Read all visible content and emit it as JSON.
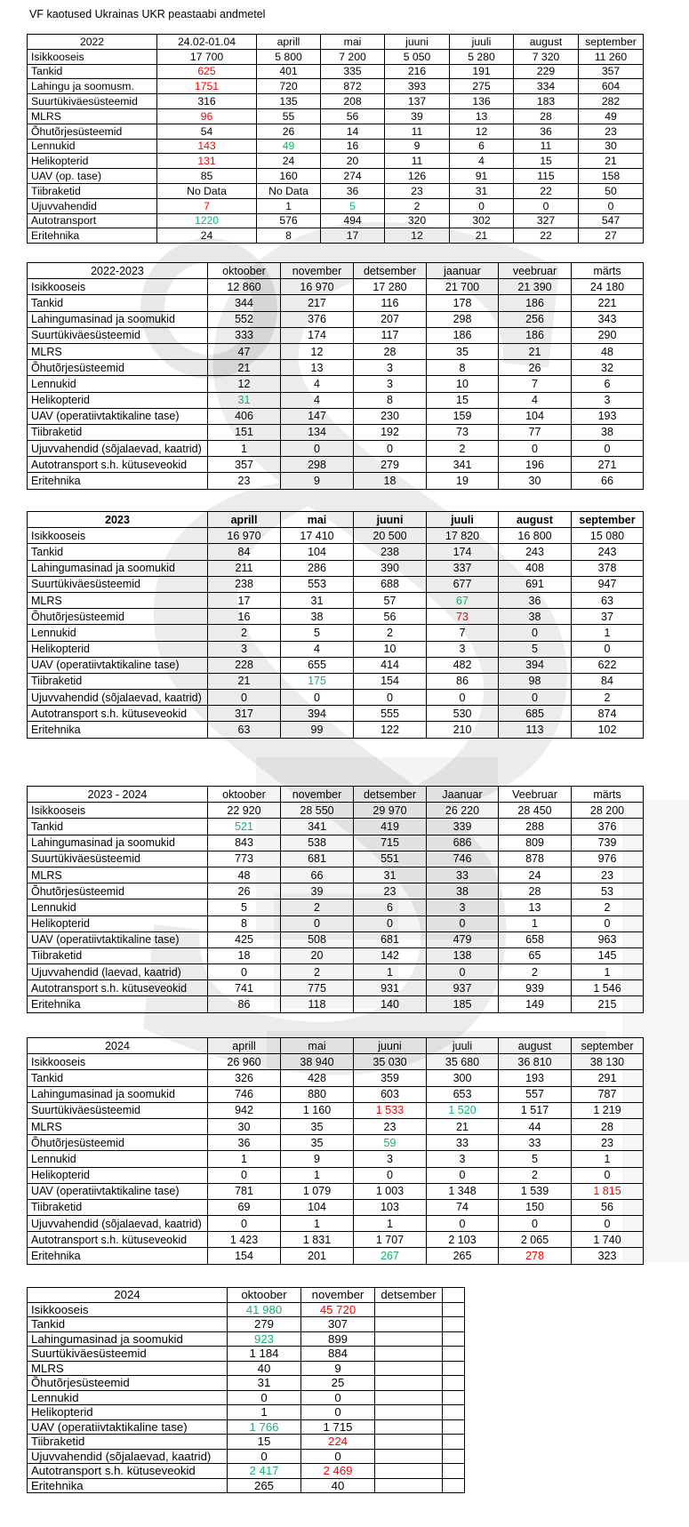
{
  "title": "VF kaotused Ukrainas UKR peastaabi andmetel",
  "colors": {
    "red": "#fe0000",
    "green": "#17b169",
    "text": "#000000",
    "border": "#000000"
  },
  "watermark": "faded-gray-emblem",
  "tables": [
    {
      "period": "2022",
      "columns": [
        "24.02-01.04",
        "aprill",
        "mai",
        "juuni",
        "juuli",
        "august",
        "september"
      ],
      "rows": [
        {
          "label": "Isikkooseis",
          "values": [
            "17 700",
            "5 800",
            "7 200",
            "5 050",
            "5 280",
            "7 320",
            "11 260"
          ]
        },
        {
          "label": "Tankid",
          "values": [
            "625",
            "401",
            "335",
            "216",
            "191",
            "229",
            "357"
          ],
          "marks": [
            "r",
            "",
            "",
            "",
            "",
            "",
            ""
          ]
        },
        {
          "label": "Lahingu ja soomusm.",
          "values": [
            "1751",
            "720",
            "872",
            "393",
            "275",
            "334",
            "604"
          ],
          "marks": [
            "r",
            "",
            "",
            "",
            "",
            "",
            ""
          ]
        },
        {
          "label": "Suurtükiväesüsteemid",
          "values": [
            "316",
            "135",
            "208",
            "137",
            "136",
            "183",
            "282"
          ]
        },
        {
          "label": "MLRS",
          "values": [
            "96",
            "55",
            "56",
            "39",
            "13",
            "28",
            "49"
          ],
          "marks": [
            "r",
            "",
            "",
            "",
            "",
            "",
            ""
          ]
        },
        {
          "label": "Õhutõrjesüsteemid",
          "values": [
            "54",
            "26",
            "14",
            "11",
            "12",
            "36",
            "23"
          ]
        },
        {
          "label": "Lennukid",
          "values": [
            "143",
            "49",
            "16",
            "9",
            "6",
            "11",
            "30"
          ],
          "marks": [
            "r",
            "g",
            "",
            "",
            "",
            "",
            ""
          ]
        },
        {
          "label": "Helikopterid",
          "values": [
            "131",
            "24",
            "20",
            "11",
            "4",
            "15",
            "21"
          ],
          "marks": [
            "r",
            "",
            "",
            "",
            "",
            "",
            ""
          ]
        },
        {
          "label": "UAV (op. tase)",
          "values": [
            "85",
            "160",
            "274",
            "126",
            "91",
            "115",
            "158"
          ]
        },
        {
          "label": "Tiibraketid",
          "values": [
            "No Data",
            "No Data",
            "36",
            "23",
            "31",
            "22",
            "50"
          ]
        },
        {
          "label": "Ujuvvahendid",
          "values": [
            "7",
            "1",
            "5",
            "2",
            "0",
            "0",
            "0"
          ],
          "marks": [
            "r",
            "",
            "g",
            "",
            "",
            "",
            ""
          ]
        },
        {
          "label": "Autotransport",
          "values": [
            "1220",
            "576",
            "494",
            "320",
            "302",
            "327",
            "547"
          ],
          "marks": [
            "g",
            "",
            "",
            "",
            "",
            "",
            ""
          ]
        },
        {
          "label": "Eritehnika",
          "values": [
            "24",
            "8",
            "17",
            "12",
            "21",
            "22",
            "27"
          ]
        }
      ]
    },
    {
      "period": "2022-2023",
      "columns": [
        "oktoober",
        "november",
        "detsember",
        "jaanuar",
        "veebruar",
        "märts"
      ],
      "rows": [
        {
          "label": "Isikkooseis",
          "values": [
            "12 860",
            "16 970",
            "17 280",
            "21 700",
            "21 390",
            "24 180"
          ]
        },
        {
          "label": "Tankid",
          "values": [
            "344",
            "217",
            "116",
            "178",
            "186",
            "221"
          ]
        },
        {
          "label": "Lahingumasinad ja soomukid",
          "values": [
            "552",
            "376",
            "207",
            "298",
            "256",
            "343"
          ]
        },
        {
          "label": "Suurtükiväesüsteemid",
          "values": [
            "333",
            "174",
            "117",
            "186",
            "186",
            "290"
          ]
        },
        {
          "label": "MLRS",
          "values": [
            "47",
            "12",
            "28",
            "35",
            "21",
            "48"
          ]
        },
        {
          "label": "Õhutõrjesüsteemid",
          "values": [
            "21",
            "13",
            "3",
            "8",
            "26",
            "32"
          ]
        },
        {
          "label": "Lennukid",
          "values": [
            "12",
            "4",
            "3",
            "10",
            "7",
            "6"
          ]
        },
        {
          "label": "Helikopterid",
          "values": [
            "31",
            "4",
            "8",
            "15",
            "4",
            "3"
          ],
          "marks": [
            "g",
            "",
            "",
            "",
            "",
            ""
          ]
        },
        {
          "label": "UAV (operatiivtaktikaline tase)",
          "values": [
            "406",
            "147",
            "230",
            "159",
            "104",
            "193"
          ]
        },
        {
          "label": "Tiibraketid",
          "values": [
            "151",
            "134",
            "192",
            "73",
            "77",
            "38"
          ]
        },
        {
          "label": "Ujuvvahendid (sõjalaevad, kaatrid)",
          "values": [
            "1",
            "0",
            "0",
            "2",
            "0",
            "0"
          ]
        },
        {
          "label": "Autotransport s.h. kütuseveokid",
          "values": [
            "357",
            "298",
            "279",
            "341",
            "196",
            "271"
          ]
        },
        {
          "label": "Eritehnika",
          "values": [
            "23",
            "9",
            "18",
            "19",
            "30",
            "66"
          ]
        }
      ]
    },
    {
      "period": "2023",
      "columns": [
        "aprill",
        "mai",
        "juuni",
        "juuli",
        "august",
        "september"
      ],
      "rows": [
        {
          "label": "Isikkooseis",
          "values": [
            "16 970",
            "17 410",
            "20 500",
            "17 820",
            "16 800",
            "15 080"
          ]
        },
        {
          "label": "Tankid",
          "values": [
            "84",
            "104",
            "238",
            "174",
            "243",
            "243"
          ]
        },
        {
          "label": "Lahingumasinad ja soomukid",
          "values": [
            "211",
            "286",
            "390",
            "337",
            "408",
            "378"
          ]
        },
        {
          "label": "Suurtükiväesüsteemid",
          "values": [
            "238",
            "553",
            "688",
            "677",
            "691",
            "947"
          ]
        },
        {
          "label": "MLRS",
          "values": [
            "17",
            "31",
            "57",
            "67",
            "36",
            "63"
          ],
          "marks": [
            "",
            "",
            "",
            "g",
            "",
            ""
          ]
        },
        {
          "label": "Õhutõrjesüsteemid",
          "values": [
            "16",
            "38",
            "56",
            "73",
            "38",
            "37"
          ],
          "marks": [
            "",
            "",
            "",
            "r",
            "",
            ""
          ]
        },
        {
          "label": "Lennukid",
          "values": [
            "2",
            "5",
            "2",
            "7",
            "0",
            "1"
          ]
        },
        {
          "label": "Helikopterid",
          "values": [
            "3",
            "4",
            "10",
            "3",
            "5",
            "0"
          ]
        },
        {
          "label": "UAV (operatiivtaktikaline tase)",
          "values": [
            "228",
            "655",
            "414",
            "482",
            "394",
            "622"
          ]
        },
        {
          "label": "Tiibraketid",
          "values": [
            "21",
            "175",
            "154",
            "86",
            "98",
            "84"
          ],
          "marks": [
            "",
            "g",
            "",
            "",
            "",
            ""
          ]
        },
        {
          "label": "Ujuvvahendid (sõjalaevad, kaatrid)",
          "values": [
            "0",
            "0",
            "0",
            "0",
            "0",
            "2"
          ]
        },
        {
          "label": "Autotransport s.h. kütuseveokid",
          "values": [
            "317",
            "394",
            "555",
            "530",
            "685",
            "874"
          ]
        },
        {
          "label": "Eritehnika",
          "values": [
            "63",
            "99",
            "122",
            "210",
            "113",
            "102"
          ]
        }
      ]
    },
    {
      "period": "2023 - 2024",
      "columns": [
        "oktoober",
        "november",
        "detsember",
        "Jaanuar",
        "Veebruar",
        "märts"
      ],
      "rows": [
        {
          "label": "Isikkooseis",
          "values": [
            "22 920",
            "28 550",
            "29 970",
            "26 220",
            "28 450",
            "28 200"
          ]
        },
        {
          "label": "Tankid",
          "values": [
            "521",
            "341",
            "419",
            "339",
            "288",
            "376"
          ],
          "marks": [
            "g",
            "",
            "",
            "",
            "",
            ""
          ]
        },
        {
          "label": "Lahingumasinad ja soomukid",
          "values": [
            "843",
            "538",
            "715",
            "686",
            "809",
            "739"
          ]
        },
        {
          "label": "Suurtükiväesüsteemid",
          "values": [
            "773",
            "681",
            "551",
            "746",
            "878",
            "976"
          ]
        },
        {
          "label": "MLRS",
          "values": [
            "48",
            "66",
            "31",
            "33",
            "24",
            "23"
          ]
        },
        {
          "label": "Õhutõrjesüsteemid",
          "values": [
            "26",
            "39",
            "23",
            "38",
            "28",
            "53"
          ]
        },
        {
          "label": "Lennukid",
          "values": [
            "5",
            "2",
            "6",
            "3",
            "13",
            "2"
          ]
        },
        {
          "label": "Helikopterid",
          "values": [
            "8",
            "0",
            "0",
            "0",
            "1",
            "0"
          ]
        },
        {
          "label": "UAV (operatiivtaktikaline tase)",
          "values": [
            "425",
            "508",
            "681",
            "479",
            "658",
            "963"
          ]
        },
        {
          "label": "Tiibraketid",
          "values": [
            "18",
            "20",
            "142",
            "138",
            "65",
            "145"
          ]
        },
        {
          "label": "Ujuvvahendid (laevad, kaatrid)",
          "values": [
            "0",
            "2",
            "1",
            "0",
            "2",
            "1"
          ]
        },
        {
          "label": "Autotransport s.h. kütuseveokid",
          "values": [
            "741",
            "775",
            "931",
            "937",
            "939",
            "1 546"
          ]
        },
        {
          "label": "Eritehnika",
          "values": [
            "86",
            "118",
            "140",
            "185",
            "149",
            "215"
          ]
        }
      ]
    },
    {
      "period": "2024",
      "columns": [
        "aprill",
        "mai",
        "juuni",
        "juuli",
        "august",
        "september"
      ],
      "rows": [
        {
          "label": "Isikkooseis",
          "values": [
            "26 960",
            "38 940",
            "35 030",
            "35 680",
            "36 810",
            "38 130"
          ]
        },
        {
          "label": "Tankid",
          "values": [
            "326",
            "428",
            "359",
            "300",
            "193",
            "291"
          ]
        },
        {
          "label": "Lahingumasinad ja soomukid",
          "values": [
            "746",
            "880",
            "603",
            "653",
            "557",
            "787"
          ]
        },
        {
          "label": "Suurtükiväesüsteemid",
          "values": [
            "942",
            "1 160",
            "1 533",
            "1 520",
            "1 517",
            "1 219"
          ],
          "marks": [
            "",
            "",
            "r",
            "g",
            "",
            ""
          ]
        },
        {
          "label": "MLRS",
          "values": [
            "30",
            "35",
            "23",
            "21",
            "44",
            "28"
          ]
        },
        {
          "label": "Õhutõrjesüsteemid",
          "values": [
            "36",
            "35",
            "59",
            "33",
            "33",
            "23"
          ],
          "marks": [
            "",
            "",
            "g",
            "",
            "",
            ""
          ]
        },
        {
          "label": "Lennukid",
          "values": [
            "1",
            "9",
            "3",
            "3",
            "5",
            "1"
          ]
        },
        {
          "label": "Helikopterid",
          "values": [
            "0",
            "1",
            "0",
            "0",
            "2",
            "0"
          ]
        },
        {
          "label": "UAV (operatiivtaktikaline tase)",
          "values": [
            "781",
            "1 079",
            "1 003",
            "1 348",
            "1 539",
            "1 815"
          ],
          "marks": [
            "",
            "",
            "",
            "",
            "",
            "r"
          ]
        },
        {
          "label": "Tiibraketid",
          "values": [
            "69",
            "104",
            "103",
            "74",
            "150",
            "56"
          ]
        },
        {
          "label": "Ujuvvahendid (sõjalaevad, kaatrid)",
          "values": [
            "0",
            "1",
            "1",
            "0",
            "0",
            "0"
          ]
        },
        {
          "label": "Autotransport s.h. kütuseveokid",
          "values": [
            "1 423",
            "1 831",
            "1 707",
            "2 103",
            "2 065",
            "1 740"
          ]
        },
        {
          "label": "Eritehnika",
          "values": [
            "154",
            "201",
            "267",
            "265",
            "278",
            "323"
          ],
          "marks": [
            "",
            "",
            "g",
            "",
            "r",
            ""
          ]
        }
      ]
    },
    {
      "period": "2024",
      "columns": [
        "oktoober",
        "november",
        "detsember",
        ""
      ],
      "rows": [
        {
          "label": "Isikkooseis",
          "values": [
            "41 980",
            "45 720",
            "",
            ""
          ],
          "marks": [
            "g",
            "r",
            "",
            ""
          ]
        },
        {
          "label": "Tankid",
          "values": [
            "279",
            "307",
            "",
            ""
          ]
        },
        {
          "label": "Lahingumasinad ja soomukid",
          "values": [
            "923",
            "899",
            "",
            ""
          ],
          "marks": [
            "g",
            "",
            "",
            ""
          ]
        },
        {
          "label": "Suurtükiväesüsteemid",
          "values": [
            "1 184",
            "884",
            "",
            ""
          ]
        },
        {
          "label": "MLRS",
          "values": [
            "40",
            "9",
            "",
            ""
          ]
        },
        {
          "label": "Õhutõrjesüsteemid",
          "values": [
            "31",
            "25",
            "",
            ""
          ]
        },
        {
          "label": "Lennukid",
          "values": [
            "0",
            "0",
            "",
            ""
          ]
        },
        {
          "label": "Helikopterid",
          "values": [
            "1",
            "0",
            "",
            ""
          ]
        },
        {
          "label": "UAV (operatiivtaktikaline tase)",
          "values": [
            "1 766",
            "1 715",
            "",
            ""
          ],
          "marks": [
            "g",
            "",
            "",
            ""
          ]
        },
        {
          "label": "Tiibraketid",
          "values": [
            "15",
            "224",
            "",
            ""
          ],
          "marks": [
            "",
            "r",
            "",
            ""
          ]
        },
        {
          "label": "Ujuvvahendid (sõjalaevad, kaatrid)",
          "values": [
            "0",
            "0",
            "",
            ""
          ]
        },
        {
          "label": "Autotransport s.h. kütuseveokid",
          "values": [
            "2 417",
            "2 469",
            "",
            ""
          ],
          "marks": [
            "g",
            "r",
            "",
            ""
          ]
        },
        {
          "label": "Eritehnika",
          "values": [
            "265",
            "40",
            "",
            ""
          ]
        }
      ]
    }
  ]
}
